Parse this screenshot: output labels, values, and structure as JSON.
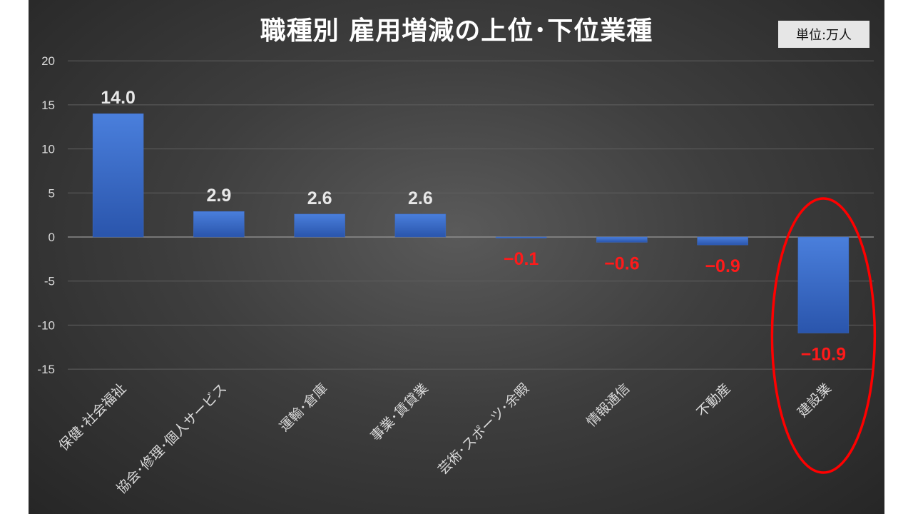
{
  "chart_data": {
    "type": "bar",
    "title": "職種別 雇用増減の上位･下位業種",
    "unit_label": "単位:万人",
    "categories": [
      "保健･社会福祉",
      "協会･修理･個人サービス",
      "運輸･倉庫",
      "事業･賃貸業",
      "芸術･スポーツ･余暇",
      "情報通信",
      "不動産",
      "建設業"
    ],
    "values": [
      14.0,
      2.9,
      2.6,
      2.6,
      -0.1,
      -0.6,
      -0.9,
      -10.9
    ],
    "data_labels": [
      "14.0",
      "2.9",
      "2.6",
      "2.6",
      "−0.1",
      "−0.6",
      "−0.9",
      "−10.9"
    ],
    "yticks": [
      "20",
      "15",
      "10",
      "5",
      "0",
      "-5",
      "-10",
      "-15"
    ],
    "ylim": [
      -15,
      20
    ],
    "grid": true,
    "highlighted_category": "建設業",
    "colors": {
      "bar_top": "#4a7fdc",
      "bar_bottom": "#2a55ac",
      "positive_label": "#e8e8e8",
      "negative_label": "#ff1a1a",
      "highlight_ellipse": "#ff0000",
      "axis_text": "#d9d9d9",
      "grid": "#5f5f5f"
    }
  }
}
